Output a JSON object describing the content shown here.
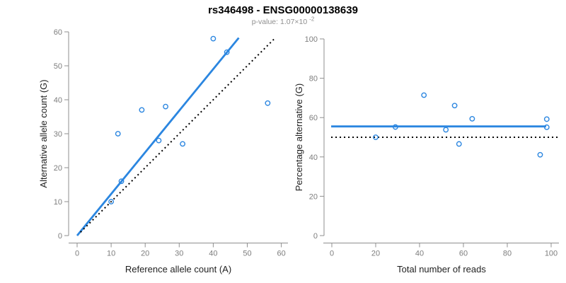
{
  "header": {
    "title": "rs346498 - ENSG00000138639",
    "subtitle_prefix": "p-value: 1.07×10",
    "subtitle_exponent": "-2"
  },
  "colors": {
    "accent_blue": "#2b86e0",
    "reference_black": "#000000",
    "axis_line": "#8f8f8f",
    "tick_label": "#7d7d7d",
    "axis_title": "#1f1f1f",
    "title": "#000000",
    "subtitle": "#8f8f8f",
    "background": "#ffffff"
  },
  "chart_data": [
    {
      "type": "scatter",
      "name": "allele-counts-scatter",
      "xlabel": "Reference allele count (A)",
      "ylabel": "Alternative allele count (G)",
      "xlim": [
        0,
        60
      ],
      "ylim": [
        0,
        60
      ],
      "xticks": [
        0,
        10,
        20,
        30,
        40,
        50,
        60
      ],
      "yticks": [
        0,
        10,
        20,
        30,
        40,
        50,
        60
      ],
      "grid": false,
      "legend": "none",
      "marker": "open-circle",
      "points": [
        [
          10,
          10
        ],
        [
          12,
          30
        ],
        [
          13,
          16
        ],
        [
          19,
          37
        ],
        [
          24,
          28
        ],
        [
          26,
          38
        ],
        [
          31,
          27
        ],
        [
          40,
          58
        ],
        [
          44,
          54
        ],
        [
          56,
          39
        ]
      ],
      "lines": [
        {
          "name": "fitted-allelic-ratio-line",
          "style": "solid",
          "color": "#2b86e0",
          "slope": 1.226,
          "intercept": 0,
          "x_range": [
            0,
            47.5
          ],
          "width": 2.8
        },
        {
          "name": "identity-line",
          "style": "dotted",
          "color": "#000000",
          "slope": 1,
          "intercept": 0,
          "x_range": [
            1,
            58.3
          ],
          "width": 2
        }
      ]
    },
    {
      "type": "scatter",
      "name": "percentage-alternative-scatter",
      "xlabel": "Total number of reads",
      "ylabel": "Percentage alternative (G)",
      "xlim": [
        0,
        100
      ],
      "ylim": [
        0,
        100
      ],
      "xticks": [
        0,
        20,
        40,
        60,
        80,
        100
      ],
      "yticks": [
        0,
        20,
        40,
        60,
        80,
        100
      ],
      "grid": false,
      "legend": "none",
      "marker": "open-circle",
      "points": [
        [
          20,
          50
        ],
        [
          29,
          55.2
        ],
        [
          42,
          71.4
        ],
        [
          52,
          53.8
        ],
        [
          56,
          66.1
        ],
        [
          58,
          46.6
        ],
        [
          64,
          59.4
        ],
        [
          95,
          41.1
        ],
        [
          98,
          55.1
        ],
        [
          98,
          59.2
        ]
      ],
      "lines": [
        {
          "name": "fitted-mean-percentage-line",
          "style": "solid",
          "color": "#2b86e0",
          "y": 55.5,
          "x_range": [
            -0.3,
            97.7
          ],
          "width": 2.8
        },
        {
          "name": "fifty-percent-reference-line",
          "style": "dotted",
          "color": "#000000",
          "y": 50,
          "x_range": [
            -0.3,
            103
          ],
          "width": 2
        }
      ]
    }
  ]
}
